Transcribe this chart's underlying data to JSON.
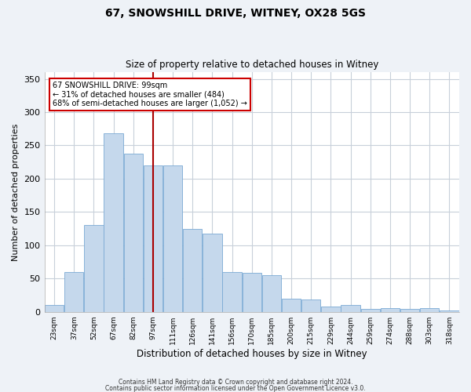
{
  "title": "67, SNOWSHILL DRIVE, WITNEY, OX28 5GS",
  "subtitle": "Size of property relative to detached houses in Witney",
  "xlabel": "Distribution of detached houses by size in Witney",
  "ylabel": "Number of detached properties",
  "bar_color": "#c5d8ec",
  "bar_edge_color": "#7baad4",
  "bin_labels": [
    "23sqm",
    "37sqm",
    "52sqm",
    "67sqm",
    "82sqm",
    "97sqm",
    "111sqm",
    "126sqm",
    "141sqm",
    "156sqm",
    "170sqm",
    "185sqm",
    "200sqm",
    "215sqm",
    "229sqm",
    "244sqm",
    "259sqm",
    "274sqm",
    "288sqm",
    "303sqm",
    "318sqm"
  ],
  "bar_heights": [
    10,
    60,
    130,
    268,
    238,
    220,
    220,
    125,
    118,
    60,
    58,
    55,
    20,
    18,
    8,
    10,
    4,
    6,
    4,
    6,
    2
  ],
  "vline_index": 5,
  "vline_color": "#aa0000",
  "ylim": [
    0,
    360
  ],
  "yticks": [
    0,
    50,
    100,
    150,
    200,
    250,
    300,
    350
  ],
  "annotation_title": "67 SNOWSHILL DRIVE: 99sqm",
  "annotation_line1": "← 31% of detached houses are smaller (484)",
  "annotation_line2": "68% of semi-detached houses are larger (1,052) →",
  "annotation_box_color": "#ffffff",
  "annotation_box_edge": "#cc0000",
  "footer1": "Contains HM Land Registry data © Crown copyright and database right 2024.",
  "footer2": "Contains public sector information licensed under the Open Government Licence v3.0.",
  "background_color": "#eef2f7",
  "plot_background": "#ffffff",
  "grid_color": "#c8d0da"
}
